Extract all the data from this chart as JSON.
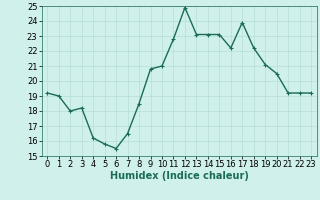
{
  "x": [
    0,
    1,
    2,
    3,
    4,
    5,
    6,
    7,
    8,
    9,
    10,
    11,
    12,
    13,
    14,
    15,
    16,
    17,
    18,
    19,
    20,
    21,
    22,
    23
  ],
  "y": [
    19.2,
    19.0,
    18.0,
    18.2,
    16.2,
    15.8,
    15.5,
    16.5,
    18.5,
    20.8,
    21.0,
    22.8,
    24.9,
    23.1,
    23.1,
    23.1,
    22.2,
    23.9,
    22.2,
    21.1,
    20.5,
    19.2,
    19.2,
    19.2
  ],
  "line_color": "#1a6b5a",
  "marker": "+",
  "marker_size": 3,
  "line_width": 1.0,
  "bg_color": "#cff0eb",
  "grid_color": "#b8ddd8",
  "xlabel": "Humidex (Indice chaleur)",
  "ylim": [
    15,
    25
  ],
  "yticks": [
    15,
    16,
    17,
    18,
    19,
    20,
    21,
    22,
    23,
    24,
    25
  ],
  "xticks": [
    0,
    1,
    2,
    3,
    4,
    5,
    6,
    7,
    8,
    9,
    10,
    11,
    12,
    13,
    14,
    15,
    16,
    17,
    18,
    19,
    20,
    21,
    22,
    23
  ],
  "xlim": [
    -0.5,
    23.5
  ],
  "tick_fontsize": 6,
  "xlabel_fontsize": 7
}
